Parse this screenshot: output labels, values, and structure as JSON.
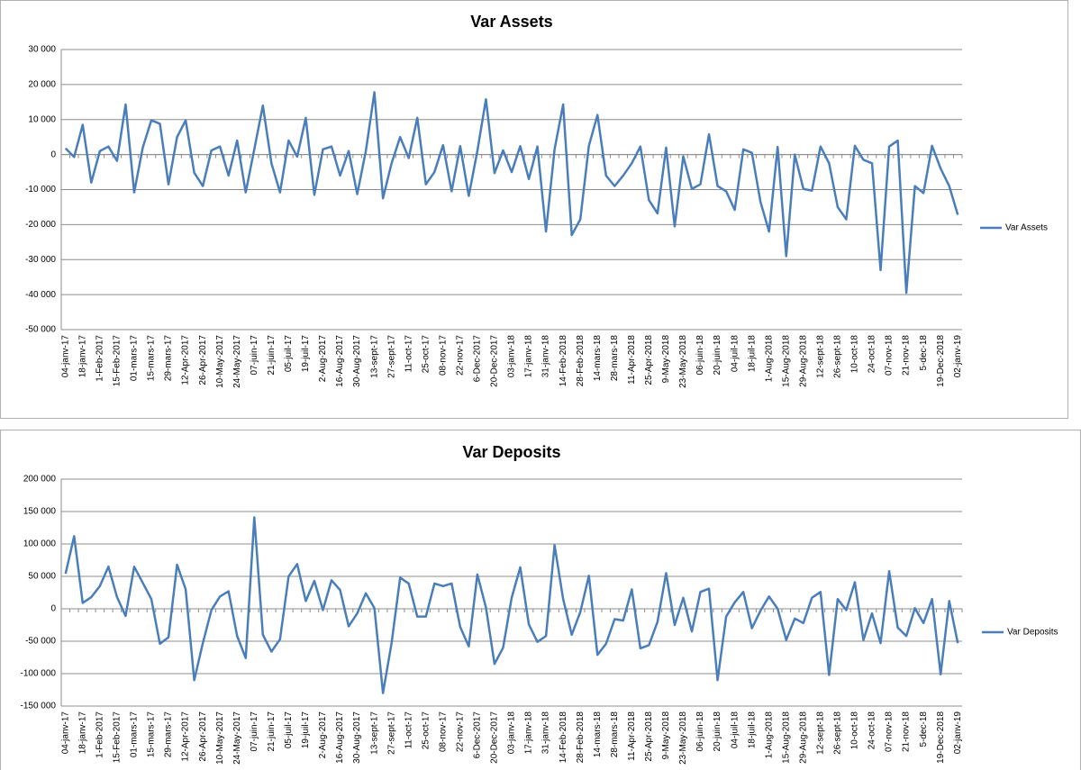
{
  "chart_data": [
    {
      "type": "line",
      "title": "Var Assets",
      "categories": [
        "04-janv-17",
        null,
        "18-janv-17",
        null,
        "1-Feb-2017",
        null,
        "15-Feb-2017",
        null,
        "01-mars-17",
        null,
        "15-mars-17",
        null,
        "29-mars-17",
        null,
        "12-Apr-2017",
        null,
        "26-Apr-2017",
        null,
        "10-May-2017",
        null,
        "24-May-2017",
        null,
        "07-juin-17",
        null,
        "21-juin-17",
        null,
        "05-juil-17",
        null,
        "19-juil-17",
        null,
        "2-Aug-2017",
        null,
        "16-Aug-2017",
        null,
        "30-Aug-2017",
        null,
        "13-sept-17",
        null,
        "27-sept-17",
        null,
        "11-oct-17",
        null,
        "25-oct-17",
        null,
        "08-nov-17",
        null,
        "22-nov-17",
        null,
        "6-Dec-2017",
        null,
        "20-Dec-2017",
        null,
        "03-janv-18",
        null,
        "17-janv-18",
        null,
        "31-janv-18",
        null,
        "14-Feb-2018",
        null,
        "28-Feb-2018",
        null,
        "14-mars-18",
        null,
        "28-mars-18",
        null,
        "11-Apr-2018",
        null,
        "25-Apr-2018",
        null,
        "9-May-2018",
        null,
        "23-May-2018",
        null,
        "06-juin-18",
        null,
        "20-juin-18",
        null,
        "04-juil-18",
        null,
        "18-juil-18",
        null,
        "1-Aug-2018",
        null,
        "15-Aug-2018",
        null,
        "29-Aug-2018",
        null,
        "12-sept-18",
        null,
        "26-sept-18",
        null,
        "10-oct-18",
        null,
        "24-oct-18",
        null,
        "07-nov-18",
        null,
        "21-nov-18",
        null,
        "5-dec-18",
        null,
        "19-Dec-2018",
        null,
        "02-janv-19"
      ],
      "series": [
        {
          "name": "Var Assets",
          "color": "#4a7ebb",
          "values": [
            1800,
            -700,
            8500,
            -8000,
            1000,
            2300,
            -1800,
            14300,
            -10800,
            2000,
            9800,
            8800,
            -8500,
            5000,
            9800,
            -5200,
            -9000,
            1200,
            2300,
            -6000,
            4000,
            -10800,
            1500,
            14000,
            -2500,
            -10800,
            4000,
            -600,
            10500,
            -11500,
            1500,
            2300,
            -6000,
            1000,
            -11300,
            1000,
            17800,
            -12500,
            -2500,
            5000,
            -1000,
            10500,
            -8500,
            -5000,
            2700,
            -10500,
            2400,
            -11800,
            1000,
            15800,
            -5300,
            1200,
            -5000,
            2400,
            -7000,
            2300,
            -22000,
            1500,
            14300,
            -23000,
            -18500,
            2500,
            11300,
            -6000,
            -9000,
            -6000,
            -2500,
            2300,
            -13000,
            -16800,
            2000,
            -20500,
            -500,
            -9800,
            -8500,
            5800,
            -9000,
            -10500,
            -15800,
            1500,
            500,
            -13500,
            -22000,
            2200,
            -29000,
            0,
            -9800,
            -10300,
            2300,
            -2500,
            -15000,
            -18500,
            2500,
            -1500,
            -2500,
            -33000,
            2300,
            4000,
            -39500,
            -9000,
            -11000,
            2500,
            -4000,
            -9000,
            -17200
          ]
        }
      ],
      "ylim": [
        -50000,
        30000
      ],
      "yticks": [
        {
          "value": -50000,
          "label": "-50 000"
        },
        {
          "value": -40000,
          "label": "-40 000"
        },
        {
          "value": -30000,
          "label": "-30 000"
        },
        {
          "value": -20000,
          "label": "-20 000"
        },
        {
          "value": -10000,
          "label": "-10 000"
        },
        0,
        {
          "value": 10000,
          "label": "10 000"
        },
        {
          "value": 20000,
          "label": "20 000"
        },
        {
          "value": 30000,
          "label": "30 000"
        }
      ],
      "grid": true,
      "legend": "right"
    },
    {
      "type": "line",
      "title": "Var Deposits",
      "categories": [
        "04-janv-17",
        null,
        "18-janv-17",
        null,
        "1-Feb-2017",
        null,
        "15-Feb-2017",
        null,
        "01-mars-17",
        null,
        "15-mars-17",
        null,
        "29-mars-17",
        null,
        "12-Apr-2017",
        null,
        "26-Apr-2017",
        null,
        "10-May-2017",
        null,
        "24-May-2017",
        null,
        "07-juin-17",
        null,
        "21-juin-17",
        null,
        "05-juil-17",
        null,
        "19-juil-17",
        null,
        "2-Aug-2017",
        null,
        "16-Aug-2017",
        null,
        "30-Aug-2017",
        null,
        "13-sept-17",
        null,
        "27-sept-17",
        null,
        "11-oct-17",
        null,
        "25-oct-17",
        null,
        "08-nov-17",
        null,
        "22-nov-17",
        null,
        "6-Dec-2017",
        null,
        "20-Dec-2017",
        null,
        "03-janv-18",
        null,
        "17-janv-18",
        null,
        "31-janv-18",
        null,
        "14-Feb-2018",
        null,
        "28-Feb-2018",
        null,
        "14-mars-18",
        null,
        "28-mars-18",
        null,
        "11-Apr-2018",
        null,
        "25-Apr-2018",
        null,
        "9-May-2018",
        null,
        "23-May-2018",
        null,
        "06-juin-18",
        null,
        "20-juin-18",
        null,
        "04-juil-18",
        null,
        "18-juil-18",
        null,
        "1-Aug-2018",
        null,
        "15-Aug-2018",
        null,
        "29-Aug-2018",
        null,
        "12-sept-18",
        null,
        "26-sept-18",
        null,
        "10-oct-18",
        null,
        "24-oct-18",
        null,
        "07-nov-18",
        null,
        "21-nov-18",
        null,
        "5-dec-18",
        null,
        "19-Dec-2018",
        null,
        "02-janv-19"
      ],
      "series": [
        {
          "name": "Var Deposits",
          "color": "#4a7ebb",
          "values": [
            54000,
            112000,
            9000,
            18000,
            35000,
            65000,
            18000,
            -11000,
            65000,
            40000,
            15000,
            -54000,
            -44000,
            68000,
            30000,
            -110000,
            -53000,
            -2000,
            19000,
            27000,
            -42000,
            -76000,
            141000,
            -40000,
            -66000,
            -47000,
            50000,
            69000,
            12000,
            43000,
            -2000,
            44000,
            29000,
            -27000,
            -7000,
            24000,
            1000,
            -130000,
            -53000,
            48000,
            39000,
            -12000,
            -12000,
            39000,
            35000,
            39000,
            -28000,
            -58000,
            53000,
            2000,
            -85000,
            -60000,
            17000,
            64000,
            -24000,
            -51000,
            -42000,
            98000,
            15000,
            -40000,
            -5000,
            51000,
            -71000,
            -54000,
            -16000,
            -18000,
            30000,
            -61000,
            -56000,
            -20000,
            55000,
            -25000,
            17000,
            -35000,
            26000,
            31000,
            -110000,
            -12000,
            10000,
            26000,
            -30000,
            -3000,
            19000,
            0,
            -48000,
            -15000,
            -22000,
            17000,
            26000,
            -102000,
            15000,
            -2000,
            41000,
            -48000,
            -7000,
            -53000,
            58000,
            -29000,
            -42000,
            1000,
            -22000,
            15000,
            -101000,
            12000,
            -53000
          ]
        }
      ],
      "ylim": [
        -150000,
        200000
      ],
      "yticks": [
        {
          "value": -150000,
          "label": "-150 000"
        },
        {
          "value": -100000,
          "label": "-100 000"
        },
        {
          "value": -50000,
          "label": "-50 000"
        },
        0,
        {
          "value": 50000,
          "label": "50 000"
        },
        {
          "value": 100000,
          "label": "100 000"
        },
        {
          "value": 150000,
          "label": "150 000"
        },
        {
          "value": 200000,
          "label": "200 000"
        }
      ],
      "grid": true,
      "legend": "right"
    }
  ]
}
